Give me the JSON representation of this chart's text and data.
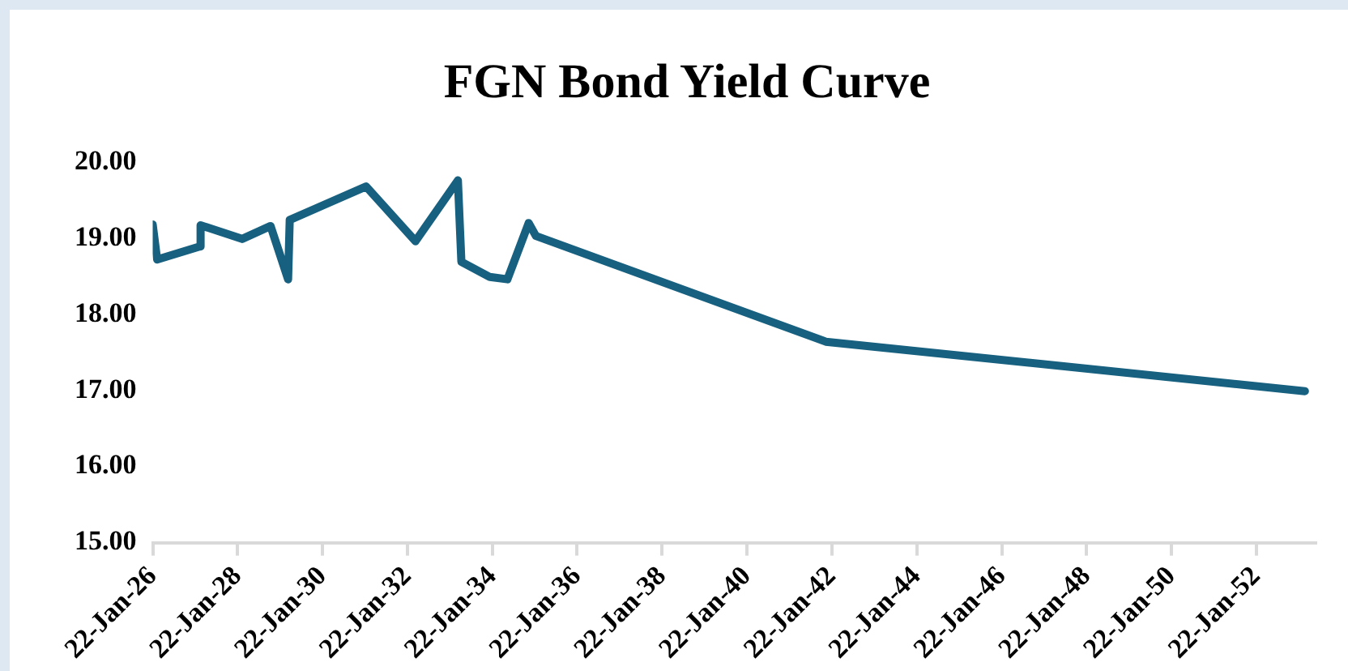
{
  "chart_data": {
    "type": "line",
    "title": "FGN Bond Yield Curve",
    "x": [
      "2026-01-22",
      "2026-03-01",
      "2027-03-01",
      "2027-03-10",
      "2028-03-01",
      "2028-11-01",
      "2029-04-01",
      "2029-04-15",
      "2031-02-01",
      "2032-04-01",
      "2033-04-01",
      "2033-05-01",
      "2034-01-01",
      "2034-06-01",
      "2034-12-01",
      "2035-02-01",
      "2041-12-01",
      "2053-03-15"
    ],
    "series": [
      {
        "color": "#17607f",
        "values": [
          19.18,
          18.72,
          18.89,
          19.17,
          18.99,
          19.16,
          18.46,
          19.24,
          19.68,
          18.96,
          19.76,
          18.69,
          18.49,
          18.46,
          19.2,
          19.03,
          17.64,
          16.99
        ]
      }
    ],
    "xlim": [
      "2026-01-22",
      "2053-06-15"
    ],
    "xticks": [
      {
        "value": "2026-01-22",
        "label": "22-Jan-26"
      },
      {
        "value": "2028-01-22",
        "label": "22-Jan-28"
      },
      {
        "value": "2030-01-22",
        "label": "22-Jan-30"
      },
      {
        "value": "2032-01-22",
        "label": "22-Jan-32"
      },
      {
        "value": "2034-01-22",
        "label": "22-Jan-34"
      },
      {
        "value": "2036-01-22",
        "label": "22-Jan-36"
      },
      {
        "value": "2038-01-22",
        "label": "22-Jan-38"
      },
      {
        "value": "2040-01-22",
        "label": "22-Jan-40"
      },
      {
        "value": "2042-01-22",
        "label": "22-Jan-42"
      },
      {
        "value": "2044-01-22",
        "label": "22-Jan-44"
      },
      {
        "value": "2046-01-22",
        "label": "22-Jan-46"
      },
      {
        "value": "2048-01-22",
        "label": "22-Jan-48"
      },
      {
        "value": "2050-01-22",
        "label": "22-Jan-50"
      },
      {
        "value": "2052-01-22",
        "label": "22-Jan-52"
      }
    ],
    "ylim": [
      15,
      20
    ],
    "yticks": [
      {
        "value": 15,
        "label": "15.00"
      },
      {
        "value": 16,
        "label": "16.00"
      },
      {
        "value": 17,
        "label": "17.00"
      },
      {
        "value": 18,
        "label": "18.00"
      },
      {
        "value": 19,
        "label": "19.00"
      },
      {
        "value": 20,
        "label": "20.00"
      }
    ],
    "grid": false,
    "legend": false,
    "marker": "none",
    "line_style": "solid"
  }
}
